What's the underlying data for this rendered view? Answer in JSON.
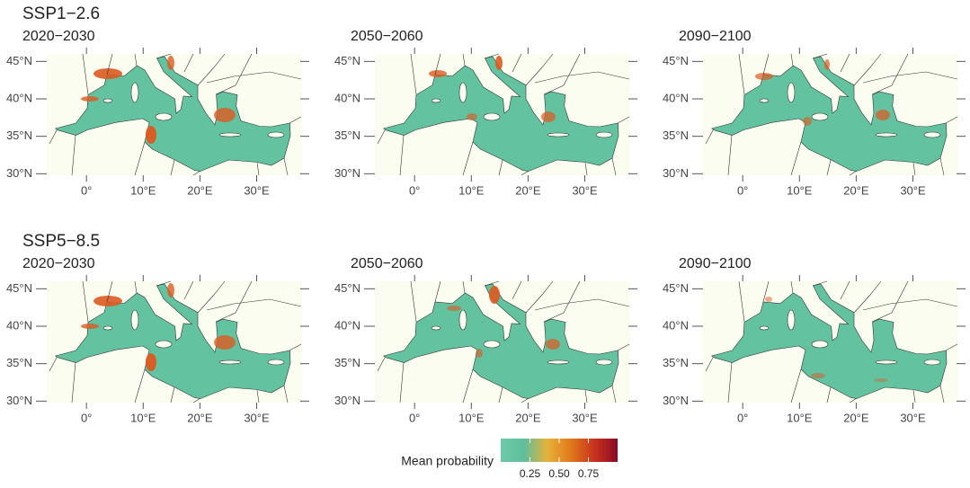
{
  "rows": [
    {
      "scenario": "SSP1−2.6",
      "periods": [
        "2020−2030",
        "2050−2060",
        "2090−2100"
      ]
    },
    {
      "scenario": "SSP5−8.5",
      "periods": [
        "2020−2030",
        "2050−2060",
        "2090−2100"
      ]
    }
  ],
  "axes": {
    "lon_range": [
      -7,
      38
    ],
    "lat_range": [
      29.8,
      46
    ],
    "lat_ticks": [
      {
        "value": 30,
        "label": "30°N"
      },
      {
        "value": 35,
        "label": "35°N"
      },
      {
        "value": 40,
        "label": "40°N"
      },
      {
        "value": 45,
        "label": "45°N"
      }
    ],
    "lon_ticks": [
      {
        "value": 0,
        "label": "0°"
      },
      {
        "value": 10,
        "label": "10°E"
      },
      {
        "value": 20,
        "label": "20°E"
      },
      {
        "value": 30,
        "label": "30°E"
      }
    ]
  },
  "legend": {
    "title": "Mean probability",
    "range": [
      0,
      1
    ],
    "ticks": [
      {
        "value": 0.25,
        "label": "0.25"
      },
      {
        "value": 0.5,
        "label": "0.50"
      },
      {
        "value": 0.75,
        "label": "0.75"
      }
    ],
    "colors": [
      "#6ccaa8",
      "#5fbf9c",
      "#e7b23a",
      "#e07a1c",
      "#c8331d",
      "#8b0a24"
    ]
  }
}
